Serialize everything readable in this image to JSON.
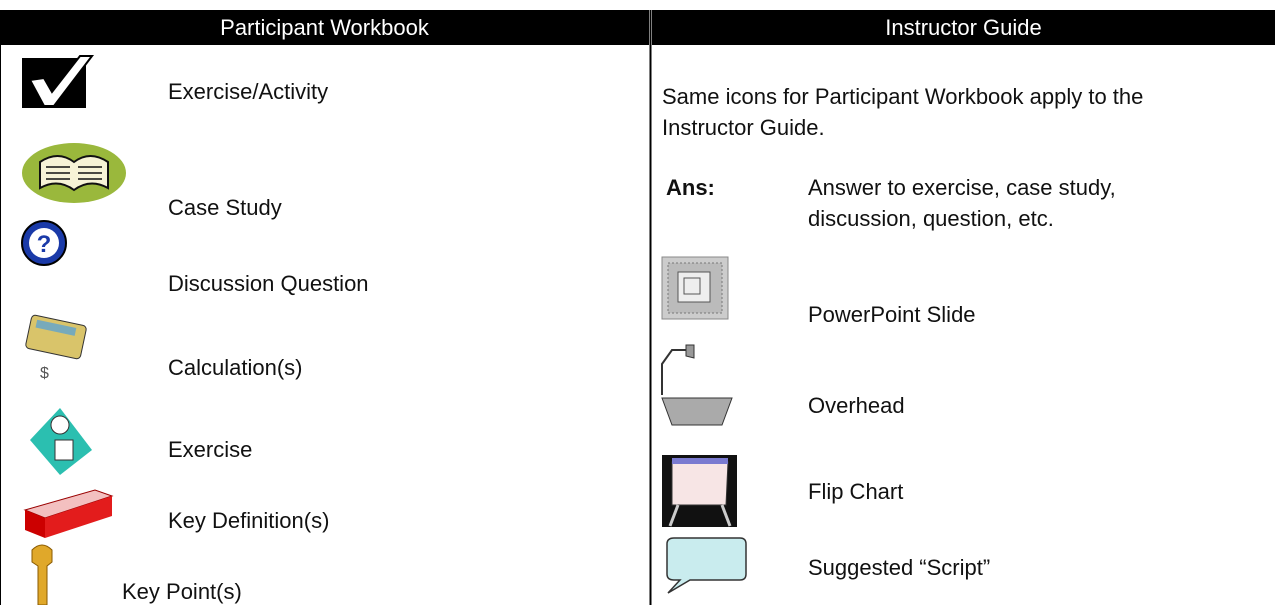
{
  "header": {
    "left": "Participant Workbook",
    "right": "Instructor Guide"
  },
  "left_items": [
    {
      "label": "Exercise/Activity"
    },
    {
      "label": "Case Study"
    },
    {
      "label": "Discussion Question"
    },
    {
      "label": "Calculation(s)"
    },
    {
      "label": "Exercise"
    },
    {
      "label": "Key Definition(s)"
    },
    {
      "label": "Key Point(s)"
    }
  ],
  "right": {
    "note": [
      "Same icons for Participant Workbook apply to the",
      "Instructor Guide."
    ],
    "answer": {
      "term": "Ans:",
      "text": [
        "Answer to exercise, case study,",
        "discussion, question, etc."
      ]
    },
    "items": [
      {
        "label": "PowerPoint Slide"
      },
      {
        "label": "Overhead"
      },
      {
        "label": "Flip Chart"
      },
      {
        "label": "Suggested “Script”"
      }
    ]
  }
}
